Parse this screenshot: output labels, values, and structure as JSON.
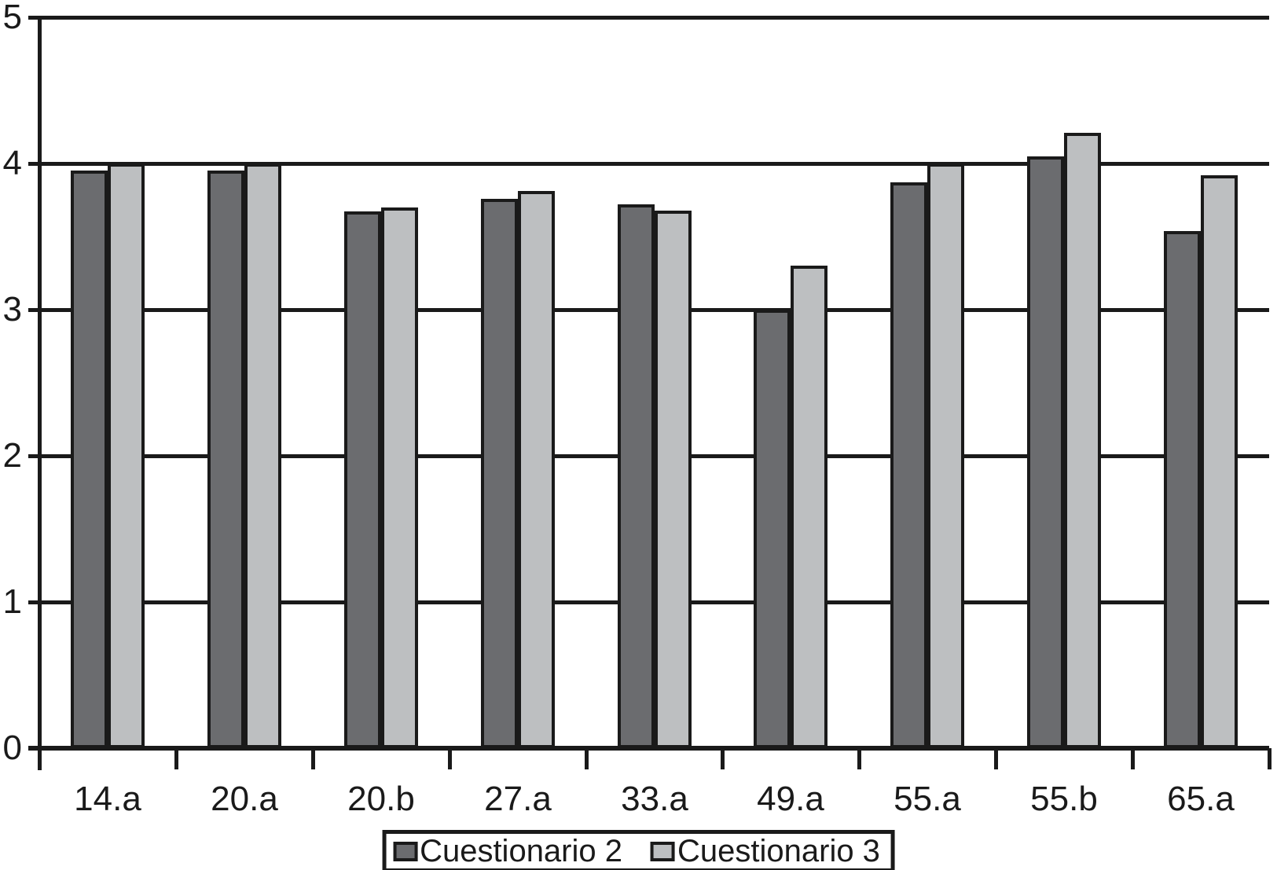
{
  "chart_data": {
    "type": "bar",
    "categories": [
      "14.a",
      "20.a",
      "20.b",
      "27.a",
      "33.a",
      "49.a",
      "55.a",
      "55.b",
      "65.a"
    ],
    "series": [
      {
        "name": "Cuestionario 2",
        "color": "#6b6c6f",
        "values": [
          3.95,
          3.95,
          3.67,
          3.76,
          3.72,
          3.0,
          3.87,
          4.05,
          3.54
        ]
      },
      {
        "name": "Cuestionario 3",
        "color": "#bdbfc1",
        "values": [
          4.0,
          4.0,
          3.7,
          3.81,
          3.68,
          3.3,
          4.0,
          4.21,
          3.92
        ]
      }
    ],
    "title": "",
    "xlabel": "",
    "ylabel": "",
    "ylim": [
      0,
      5
    ],
    "yticks": [
      0,
      1,
      2,
      3,
      4,
      5
    ],
    "grid": true,
    "legend_position": "bottom",
    "line_color": "#1a1a1a",
    "background": "#ffffff"
  }
}
